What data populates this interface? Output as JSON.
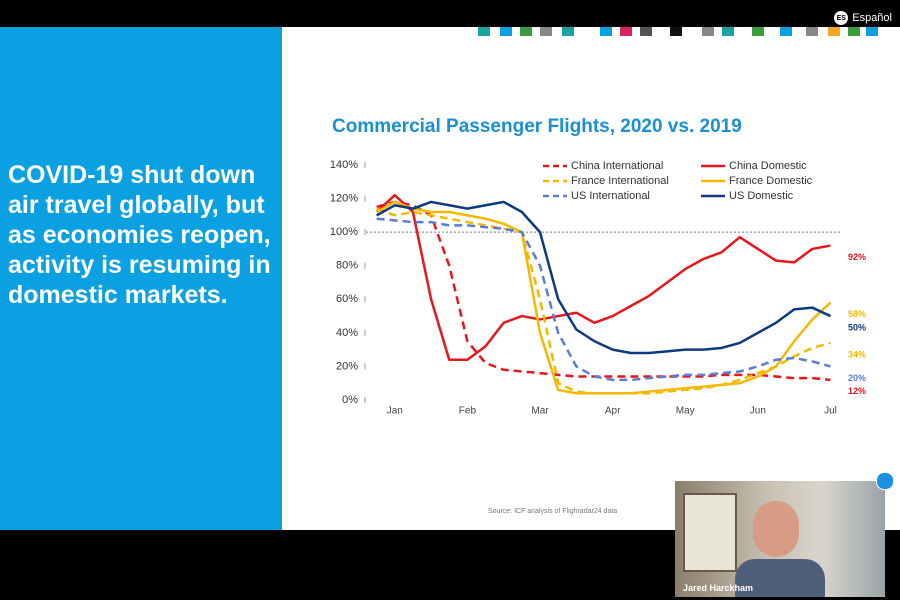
{
  "header": {
    "language_badge": "ES",
    "language": "Español"
  },
  "slide": {
    "text": "COVID-19 shut down air travel globally, but as economies reopen, activity is resuming in domestic markets.",
    "source": "Source: ICF analysis of Flighradar24 data"
  },
  "video": {
    "participant_name": "Jared Harckham"
  },
  "chart_data": {
    "type": "line",
    "title": "Commercial Passenger Flights, 2020 vs. 2019",
    "x": [
      -0.25,
      0,
      0.25,
      0.5,
      0.75,
      1,
      1.25,
      1.5,
      1.75,
      2,
      2.25,
      2.5,
      2.75,
      3,
      3.25,
      3.5,
      3.75,
      4,
      4.25,
      4.5,
      4.75,
      5,
      5.25,
      5.5,
      5.75,
      6
    ],
    "xlim": [
      -0.3,
      6.2
    ],
    "xticks": [
      {
        "value": 0,
        "label": "Jan"
      },
      {
        "value": 1,
        "label": "Feb"
      },
      {
        "value": 2,
        "label": "Mar"
      },
      {
        "value": 3,
        "label": "Apr"
      },
      {
        "value": 4,
        "label": "May"
      },
      {
        "value": 5,
        "label": "Jun"
      },
      {
        "value": 6,
        "label": "Jul"
      }
    ],
    "ylim": [
      0,
      140
    ],
    "yticks": [
      {
        "value": 0,
        "label": "0%"
      },
      {
        "value": 20,
        "label": "20%"
      },
      {
        "value": 40,
        "label": "40%"
      },
      {
        "value": 60,
        "label": "60%"
      },
      {
        "value": 80,
        "label": "80%"
      },
      {
        "value": 100,
        "label": "100%"
      },
      {
        "value": 120,
        "label": "120%"
      },
      {
        "value": 140,
        "label": "140%"
      }
    ],
    "reference_line": 100,
    "series": [
      {
        "name": "China International",
        "color": "#e8161b",
        "dashed": true,
        "values": [
          115,
          118,
          116,
          110,
          80,
          35,
          22,
          18,
          17,
          16,
          15,
          14,
          14,
          14,
          14,
          14,
          14,
          14,
          14,
          15,
          15,
          15,
          14,
          13,
          13,
          12
        ],
        "value_labels": [
          null,
          null,
          null,
          null,
          null,
          null,
          null,
          null,
          null,
          null,
          null,
          null,
          null,
          null,
          null,
          null,
          null,
          null,
          null,
          null,
          null,
          null,
          null,
          null,
          null,
          "12%"
        ]
      },
      {
        "name": "China Domestic",
        "color": "#e8161b",
        "dashed": false,
        "values": [
          112,
          122,
          112,
          60,
          24,
          24,
          32,
          46,
          50,
          48,
          50,
          52,
          46,
          50,
          56,
          62,
          70,
          78,
          84,
          88,
          97,
          90,
          83,
          82,
          90,
          92
        ],
        "value_labels": [
          null,
          null,
          null,
          null,
          null,
          null,
          null,
          null,
          null,
          null,
          null,
          null,
          null,
          null,
          null,
          null,
          null,
          null,
          null,
          null,
          null,
          null,
          null,
          null,
          null,
          "92%"
        ]
      },
      {
        "name": "France International",
        "color": "#f5b800",
        "dashed": true,
        "values": [
          114,
          110,
          112,
          110,
          108,
          106,
          104,
          102,
          100,
          60,
          10,
          5,
          4,
          4,
          4,
          4,
          5,
          6,
          7,
          9,
          12,
          16,
          20,
          26,
          31,
          34
        ],
        "value_labels": [
          null,
          null,
          null,
          null,
          null,
          null,
          null,
          null,
          null,
          null,
          null,
          null,
          null,
          null,
          null,
          null,
          null,
          null,
          null,
          null,
          null,
          null,
          null,
          null,
          null,
          "34%"
        ]
      },
      {
        "name": "France Domestic",
        "color": "#f5b800",
        "dashed": false,
        "values": [
          112,
          118,
          114,
          112,
          112,
          110,
          108,
          105,
          100,
          40,
          6,
          4,
          4,
          4,
          4,
          5,
          6,
          7,
          8,
          9,
          10,
          14,
          20,
          35,
          48,
          58
        ],
        "value_labels": [
          null,
          null,
          null,
          null,
          null,
          null,
          null,
          null,
          null,
          null,
          null,
          null,
          null,
          null,
          null,
          null,
          null,
          null,
          null,
          null,
          null,
          null,
          null,
          null,
          null,
          "58%"
        ]
      },
      {
        "name": "US International",
        "color": "#5b7bd5",
        "dashed": true,
        "values": [
          108,
          107,
          106,
          106,
          104,
          104,
          103,
          102,
          100,
          80,
          40,
          20,
          14,
          12,
          12,
          13,
          14,
          15,
          15,
          16,
          17,
          20,
          24,
          25,
          23,
          20
        ],
        "value_labels": [
          null,
          null,
          null,
          null,
          null,
          null,
          null,
          null,
          null,
          null,
          null,
          null,
          null,
          null,
          null,
          null,
          null,
          null,
          null,
          null,
          null,
          null,
          null,
          null,
          null,
          "20%"
        ]
      },
      {
        "name": "US Domestic",
        "color": "#0b3a7e",
        "dashed": false,
        "values": [
          110,
          116,
          114,
          118,
          116,
          114,
          116,
          118,
          112,
          100,
          60,
          42,
          35,
          30,
          28,
          28,
          29,
          30,
          30,
          31,
          34,
          40,
          46,
          54,
          55,
          50
        ],
        "value_labels": [
          null,
          null,
          null,
          null,
          null,
          null,
          null,
          null,
          null,
          null,
          null,
          null,
          null,
          null,
          null,
          null,
          null,
          null,
          null,
          null,
          null,
          null,
          null,
          null,
          null,
          "50%"
        ]
      }
    ]
  }
}
